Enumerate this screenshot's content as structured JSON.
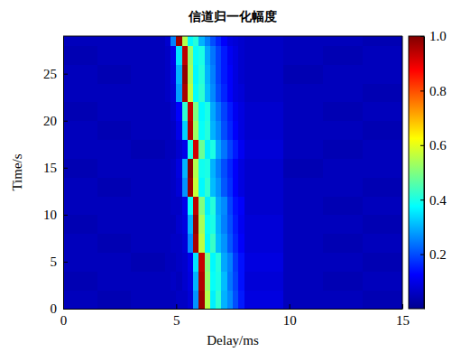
{
  "chart_data": {
    "type": "heatmap",
    "title": "信道归一化幅度",
    "x_label": "Delay/ms",
    "y_label": "Time/s",
    "xlim": [
      0,
      15
    ],
    "ylim": [
      0,
      29
    ],
    "xticks": [
      0,
      5,
      10,
      15
    ],
    "yticks": [
      0,
      5,
      10,
      15,
      20,
      25
    ],
    "x_edges": [
      0,
      1.5,
      3,
      4.5,
      4.75,
      5,
      5.25,
      5.5,
      5.75,
      6,
      6.25,
      6.5,
      6.75,
      7,
      7.25,
      7.5,
      7.75,
      8,
      9.75,
      11.5,
      13.25,
      15
    ],
    "y_edges": [
      0,
      2,
      4,
      6,
      8,
      10,
      12,
      14,
      16,
      18,
      20,
      22,
      24,
      26,
      28,
      29
    ],
    "cells": [
      [
        0.05,
        0.04,
        0.05,
        0.05,
        0.05,
        0.06,
        0.06,
        0.08,
        0.27,
        0.97,
        0.55,
        0.36,
        0.42,
        0.3,
        0.26,
        0.2,
        0.15,
        0.09,
        0.05,
        0.05,
        0.04
      ],
      [
        0.04,
        0.05,
        0.05,
        0.05,
        0.06,
        0.05,
        0.07,
        0.09,
        0.3,
        0.95,
        0.52,
        0.38,
        0.4,
        0.31,
        0.24,
        0.19,
        0.14,
        0.08,
        0.05,
        0.04,
        0.05
      ],
      [
        0.05,
        0.05,
        0.04,
        0.05,
        0.05,
        0.06,
        0.07,
        0.1,
        0.35,
        0.93,
        0.5,
        0.37,
        0.41,
        0.29,
        0.25,
        0.18,
        0.14,
        0.09,
        0.05,
        0.05,
        0.04
      ],
      [
        0.05,
        0.04,
        0.05,
        0.05,
        0.06,
        0.06,
        0.08,
        0.26,
        0.96,
        0.56,
        0.37,
        0.43,
        0.31,
        0.27,
        0.21,
        0.16,
        0.12,
        0.08,
        0.05,
        0.04,
        0.05
      ],
      [
        0.04,
        0.05,
        0.05,
        0.05,
        0.05,
        0.07,
        0.09,
        0.3,
        0.98,
        0.54,
        0.38,
        0.4,
        0.3,
        0.25,
        0.2,
        0.15,
        0.11,
        0.08,
        0.05,
        0.05,
        0.04
      ],
      [
        0.05,
        0.05,
        0.05,
        0.05,
        0.06,
        0.06,
        0.1,
        0.38,
        0.94,
        0.5,
        0.36,
        0.41,
        0.29,
        0.26,
        0.19,
        0.14,
        0.12,
        0.07,
        0.05,
        0.04,
        0.05
      ],
      [
        0.05,
        0.04,
        0.05,
        0.05,
        0.06,
        0.08,
        0.27,
        0.97,
        0.57,
        0.37,
        0.42,
        0.31,
        0.27,
        0.21,
        0.17,
        0.12,
        0.09,
        0.07,
        0.05,
        0.05,
        0.04
      ],
      [
        0.04,
        0.05,
        0.05,
        0.05,
        0.06,
        0.09,
        0.3,
        0.99,
        0.55,
        0.39,
        0.4,
        0.3,
        0.25,
        0.2,
        0.16,
        0.12,
        0.09,
        0.07,
        0.04,
        0.05,
        0.05
      ],
      [
        0.05,
        0.05,
        0.04,
        0.05,
        0.05,
        0.07,
        0.1,
        0.4,
        0.92,
        0.48,
        0.36,
        0.4,
        0.29,
        0.24,
        0.19,
        0.15,
        0.11,
        0.08,
        0.05,
        0.04,
        0.05
      ],
      [
        0.05,
        0.04,
        0.05,
        0.05,
        0.06,
        0.1,
        0.33,
        0.95,
        0.53,
        0.38,
        0.41,
        0.3,
        0.26,
        0.2,
        0.16,
        0.12,
        0.09,
        0.07,
        0.05,
        0.05,
        0.04
      ],
      [
        0.04,
        0.05,
        0.05,
        0.05,
        0.07,
        0.12,
        0.42,
        0.93,
        0.5,
        0.37,
        0.4,
        0.29,
        0.24,
        0.19,
        0.15,
        0.11,
        0.09,
        0.07,
        0.05,
        0.04,
        0.05
      ],
      [
        0.05,
        0.05,
        0.05,
        0.06,
        0.08,
        0.28,
        0.96,
        0.56,
        0.38,
        0.42,
        0.31,
        0.26,
        0.2,
        0.16,
        0.12,
        0.09,
        0.08,
        0.06,
        0.05,
        0.05,
        0.04
      ],
      [
        0.05,
        0.04,
        0.05,
        0.06,
        0.09,
        0.3,
        0.98,
        0.54,
        0.37,
        0.41,
        0.3,
        0.25,
        0.19,
        0.15,
        0.12,
        0.09,
        0.07,
        0.06,
        0.04,
        0.05,
        0.05
      ],
      [
        0.04,
        0.05,
        0.05,
        0.06,
        0.1,
        0.35,
        0.94,
        0.52,
        0.38,
        0.4,
        0.29,
        0.24,
        0.19,
        0.15,
        0.11,
        0.09,
        0.07,
        0.06,
        0.05,
        0.04,
        0.05
      ],
      [
        0.05,
        0.05,
        0.05,
        0.07,
        0.25,
        0.97,
        0.55,
        0.37,
        0.41,
        0.3,
        0.25,
        0.2,
        0.16,
        0.12,
        0.09,
        0.08,
        0.07,
        0.06,
        0.05,
        0.05,
        0.04
      ]
    ],
    "colorbar_lim": [
      0,
      1
    ],
    "colorbar_ticks": [
      0.2,
      0.4,
      0.6,
      0.8,
      {
        "value": 1,
        "label": "1.0"
      }
    ]
  }
}
